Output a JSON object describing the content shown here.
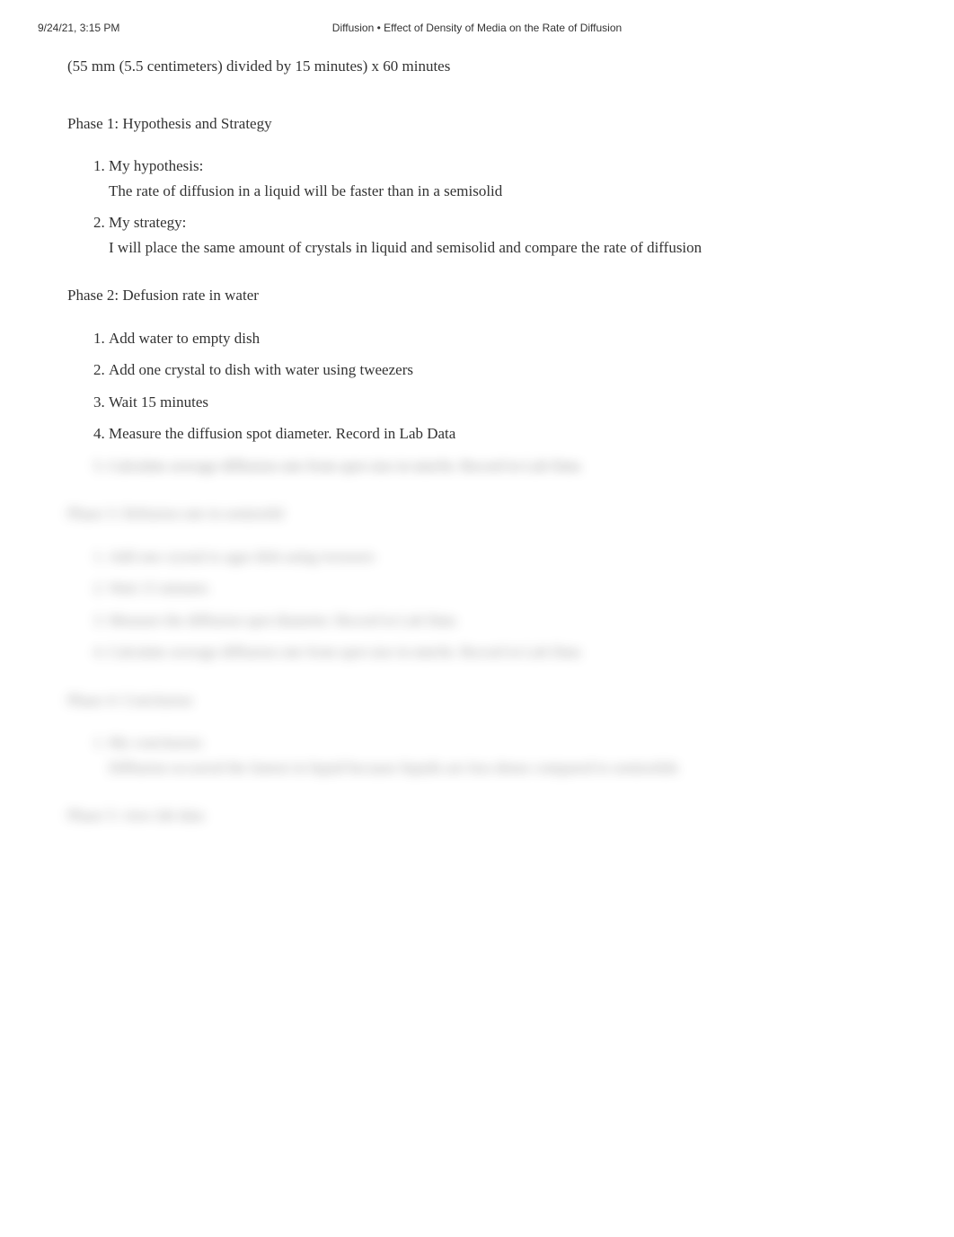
{
  "header": {
    "timestamp": "9/24/21, 3:15 PM",
    "title": "Diffusion • Effect of Density of Media on the Rate of Diffusion"
  },
  "formula": "(55 mm (5.5 centimeters) divided by 15 minutes) x 60 minutes",
  "phase1": {
    "title": "Phase 1: Hypothesis and Strategy",
    "items": [
      {
        "label": "My hypothesis:",
        "body": "The rate of diffusion in a liquid will be faster than in a semisolid"
      },
      {
        "label": "My strategy:",
        "body": "I will place the same amount of crystals in liquid and semisolid and compare the rate of diffusion"
      }
    ]
  },
  "phase2": {
    "title": "Phase 2: Defusion rate in water",
    "items": [
      "Add water to empty dish",
      "Add one crystal to dish with water using tweezers",
      "Wait 15 minutes",
      "Measure the diffusion spot diameter. Record in Lab Data",
      "Calculate average diffusion rate from spot size in mm/hr. Record in Lab Data"
    ]
  },
  "phase3": {
    "title": "Phase 3: Defusion rate in semisolid",
    "items": [
      "Add one crystal to agar dish using tweezers",
      "Wait 15 minutes",
      "Measure the diffusion spot diameter. Record in Lab Data",
      "Calculate average diffusion rate from spot size in mm/hr. Record in Lab Data"
    ]
  },
  "phase4": {
    "title": "Phase 4: Conclusion",
    "items": [
      {
        "label": "My conclusion:",
        "body": "Diffusion occurred the fastest in liquid because liquids are less dense compared to semisolids"
      }
    ]
  },
  "phase5": {
    "title": "Phase 5: view lab data"
  },
  "colors": {
    "text": "#333333",
    "background": "#ffffff"
  }
}
